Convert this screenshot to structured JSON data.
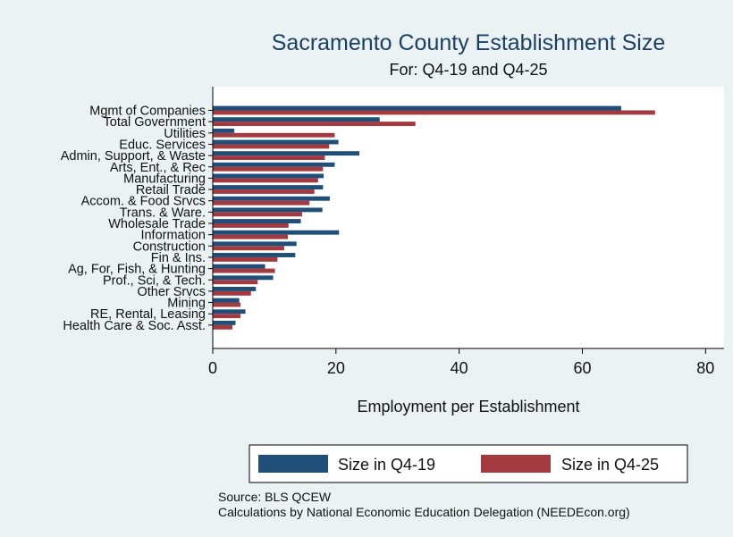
{
  "chart_data": {
    "type": "bar",
    "orientation": "horizontal",
    "title": "Sacramento County Establishment Size",
    "subtitle": "For: Q4-19 and Q4-25",
    "xlabel": "Employment per Establishment",
    "ylabel": "",
    "xlim": [
      0,
      83
    ],
    "xticks": [
      0,
      20,
      40,
      60,
      80
    ],
    "grid": false,
    "legend_position": "bottom",
    "categories": [
      "Mgmt of Companies",
      "Total Government",
      "Utilities",
      "Educ. Services",
      "Admin, Support, & Waste",
      "Arts, Ent., & Rec",
      "Manufacturing",
      "Retail Trade",
      "Accom. & Food Srvcs",
      "Trans. & Ware.",
      "Wholesale Trade",
      "Information",
      "Construction",
      "Fin & Ins.",
      "Ag, For, Fish, & Hunting",
      "Prof., Sci, & Tech.",
      "Other Srvcs",
      "Mining",
      "RE, Rental, Leasing",
      "Health Care & Soc. Asst."
    ],
    "series": [
      {
        "name": "Size in Q4-19",
        "color": "#1f4e79",
        "values": [
          66.3,
          27.1,
          3.5,
          20.4,
          23.8,
          19.8,
          18.0,
          17.9,
          19.0,
          17.8,
          14.3,
          20.5,
          13.6,
          13.4,
          8.5,
          9.8,
          7.0,
          4.3,
          5.3,
          3.7
        ]
      },
      {
        "name": "Size in Q4-25",
        "color": "#a33a3f",
        "values": [
          71.8,
          32.9,
          19.8,
          18.9,
          18.2,
          17.9,
          17.1,
          16.5,
          15.7,
          14.5,
          12.3,
          12.2,
          11.6,
          10.5,
          10.1,
          7.3,
          6.2,
          4.5,
          4.5,
          3.2
        ]
      }
    ],
    "source_lines": [
      "Source: BLS QCEW",
      "Calculations by National Economic Education Delegation (NEEDEcon.org)"
    ]
  }
}
